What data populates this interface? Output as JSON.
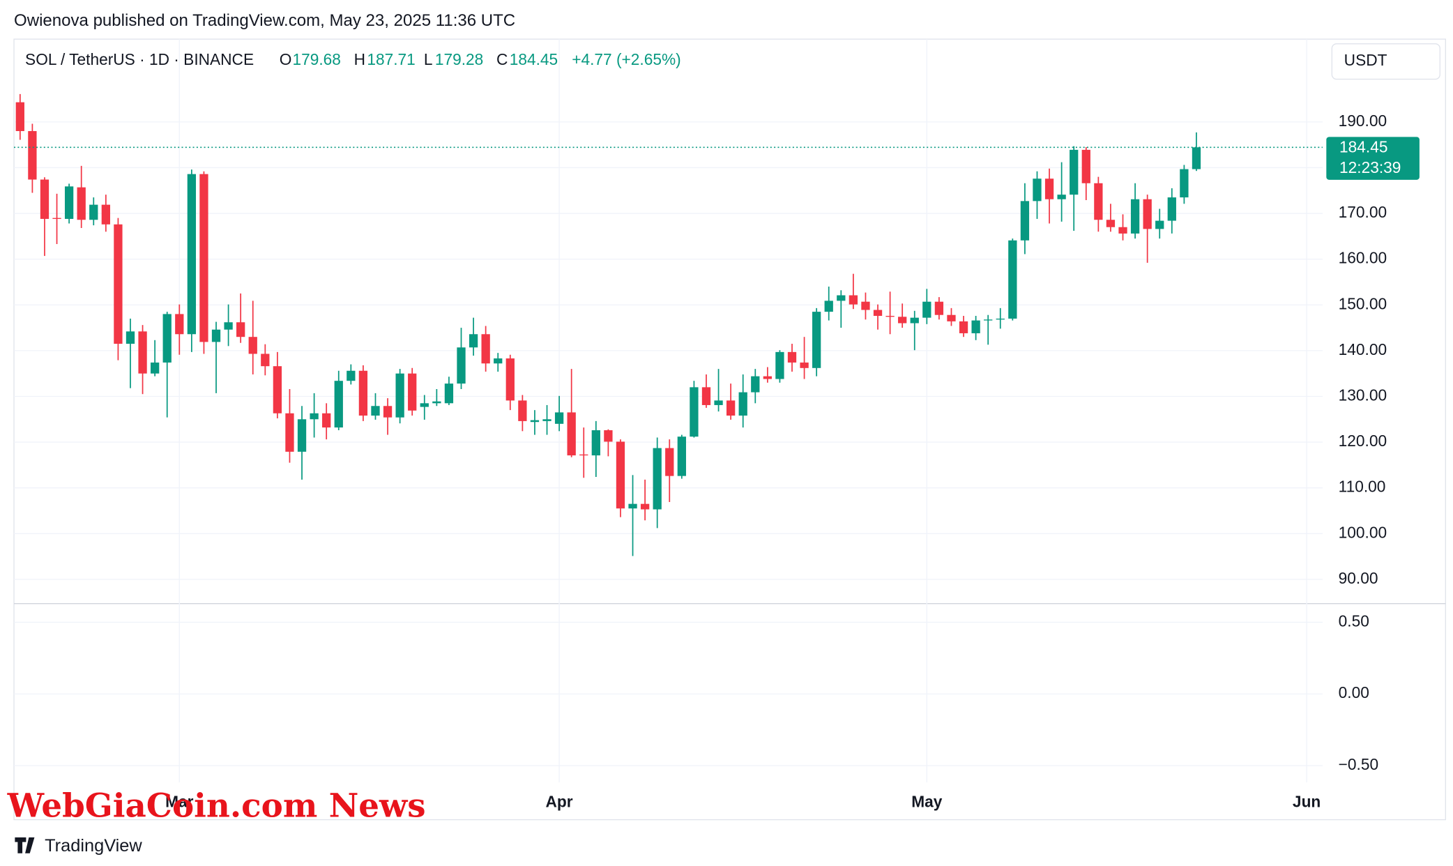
{
  "header": {
    "publisher": "Owienova published on TradingView.com, May 23, 2025 11:36 UTC",
    "symbol": "SOL / TetherUS · 1D · BINANCE",
    "open_label": "O",
    "open": 179.68,
    "high_label": "H",
    "high": 187.71,
    "low_label": "L",
    "low": 179.28,
    "close_label": "C",
    "close": 184.45,
    "change": "+4.77 (+2.65%)",
    "currency": "USDT"
  },
  "chart_data": {
    "type": "candlestick",
    "up_color": "#089981",
    "down_color": "#f23645",
    "grid": true,
    "last_price": 184.45,
    "countdown": "12:23:39",
    "xlim": [
      -0.5,
      106.3
    ],
    "xticks": [
      {
        "value": 13,
        "label": "Mar"
      },
      {
        "value": 44,
        "label": "Apr"
      },
      {
        "value": 74,
        "label": "May"
      },
      {
        "value": 105,
        "label": "Jun"
      }
    ],
    "ylim": [
      84.7,
      208.1
    ],
    "yticks": [
      {
        "value": 90,
        "label": "90.00"
      },
      {
        "value": 100,
        "label": "100.00"
      },
      {
        "value": 110,
        "label": "110.00"
      },
      {
        "value": 120,
        "label": "120.00"
      },
      {
        "value": 130,
        "label": "130.00"
      },
      {
        "value": 140,
        "label": "140.00"
      },
      {
        "value": 150,
        "label": "150.00"
      },
      {
        "value": 160,
        "label": "160.00"
      },
      {
        "value": 170,
        "label": "170.00"
      },
      {
        "value": 180,
        "label": "180.00"
      },
      {
        "value": 190,
        "label": "190.00"
      }
    ],
    "y2lim": [
      -0.617,
      0.63
    ],
    "y2ticks": [
      {
        "value": 0.5,
        "label": "0.50"
      },
      {
        "value": 0,
        "label": "0.00"
      },
      {
        "value": -0.5,
        "label": "−0.50"
      }
    ],
    "open": [
      194.3,
      188.0,
      177.4,
      169.0,
      168.8,
      175.7,
      168.6,
      171.9,
      167.6,
      141.5,
      144.2,
      135.0,
      137.4,
      148.0,
      143.6,
      178.6,
      141.9,
      144.6,
      146.2,
      143.0,
      139.3,
      136.6,
      126.3,
      117.9,
      125.0,
      126.3,
      123.2,
      133.4,
      135.6,
      125.8,
      127.9,
      125.4,
      135.0,
      127.7,
      128.5,
      128.5,
      132.8,
      140.7,
      143.6,
      137.2,
      138.3,
      129.1,
      124.4,
      124.6,
      124.0,
      126.5,
      117.3,
      117.1,
      122.6,
      120.1,
      105.5,
      106.5,
      105.3,
      118.7,
      112.6,
      121.2,
      132.0,
      128.1,
      129.1,
      125.8,
      130.9,
      134.4,
      133.8,
      139.7,
      137.4,
      136.2,
      148.5,
      150.9,
      152.1,
      150.7,
      148.9,
      147.6,
      147.4,
      146.0,
      147.2,
      150.7,
      147.8,
      146.4,
      143.8,
      146.6,
      146.8,
      147.0,
      164.1,
      172.7,
      177.6,
      173.1,
      174.1,
      183.9,
      176.6,
      168.6,
      167.0,
      165.6,
      173.1,
      166.6,
      168.4,
      173.5,
      179.68
    ],
    "high": [
      196.1,
      189.6,
      177.9,
      174.3,
      176.5,
      180.4,
      173.5,
      174.1,
      169.0,
      147.0,
      145.6,
      142.3,
      148.5,
      150.1,
      179.6,
      179.2,
      146.3,
      150.1,
      152.5,
      150.9,
      141.4,
      139.7,
      131.6,
      127.9,
      130.7,
      128.5,
      135.6,
      137.0,
      136.8,
      130.7,
      129.6,
      136.0,
      136.2,
      130.3,
      131.6,
      134.3,
      145.0,
      147.2,
      145.4,
      139.5,
      139.1,
      130.3,
      127.0,
      128.1,
      130.1,
      136.0,
      123.2,
      124.6,
      122.8,
      120.6,
      112.8,
      111.8,
      121.0,
      120.6,
      121.6,
      133.4,
      134.8,
      136.0,
      132.8,
      134.8,
      136.0,
      136.4,
      140.1,
      141.5,
      143.0,
      149.3,
      154.0,
      153.2,
      156.8,
      152.7,
      150.1,
      152.9,
      150.3,
      148.7,
      153.5,
      151.7,
      149.3,
      147.6,
      147.6,
      147.8,
      149.3,
      164.5,
      176.6,
      179.2,
      179.8,
      181.2,
      184.7,
      184.5,
      178.0,
      172.1,
      169.8,
      176.6,
      174.1,
      171.0,
      175.5,
      180.6,
      187.71
    ],
    "low": [
      186.1,
      174.5,
      160.7,
      163.3,
      167.8,
      166.8,
      167.4,
      166.0,
      137.9,
      131.8,
      130.5,
      134.4,
      125.4,
      139.1,
      139.7,
      139.3,
      130.7,
      141.0,
      141.7,
      134.8,
      134.6,
      125.2,
      115.5,
      111.8,
      121.0,
      120.6,
      122.6,
      132.6,
      124.6,
      124.9,
      121.6,
      124.1,
      125.8,
      124.9,
      127.9,
      128.1,
      131.6,
      138.9,
      135.4,
      135.4,
      127.0,
      122.4,
      121.6,
      121.6,
      122.4,
      116.7,
      112.2,
      112.4,
      116.9,
      103.6,
      95.1,
      102.9,
      101.2,
      106.9,
      112.0,
      121.0,
      127.5,
      126.7,
      124.9,
      123.2,
      128.5,
      133.0,
      133.0,
      135.4,
      133.8,
      134.4,
      146.6,
      145.0,
      149.1,
      146.8,
      144.6,
      143.6,
      145.0,
      140.1,
      145.8,
      146.8,
      145.4,
      143.0,
      142.3,
      141.3,
      144.8,
      146.6,
      161.1,
      168.8,
      167.8,
      168.2,
      166.2,
      172.9,
      166.0,
      166.0,
      164.1,
      164.5,
      159.2,
      164.5,
      165.6,
      172.1,
      179.28
    ],
    "close": [
      188.0,
      177.4,
      168.8,
      168.8,
      175.9,
      168.6,
      171.9,
      167.6,
      141.5,
      144.2,
      135.0,
      137.4,
      148.0,
      143.6,
      178.6,
      141.9,
      144.6,
      146.2,
      143.0,
      139.3,
      136.6,
      126.3,
      117.9,
      125.0,
      126.3,
      123.2,
      133.4,
      135.6,
      125.8,
      127.9,
      125.4,
      135.0,
      126.9,
      128.5,
      128.9,
      132.8,
      140.7,
      143.6,
      137.2,
      138.3,
      129.1,
      124.6,
      124.8,
      125.0,
      126.5,
      117.1,
      117.1,
      122.6,
      120.1,
      105.5,
      106.5,
      105.3,
      118.7,
      112.6,
      121.2,
      132.0,
      128.1,
      129.1,
      125.8,
      130.9,
      134.4,
      133.8,
      139.7,
      137.4,
      136.2,
      148.5,
      150.9,
      152.1,
      150.1,
      148.9,
      147.6,
      147.4,
      146.0,
      147.2,
      150.7,
      147.8,
      146.4,
      143.8,
      146.6,
      146.8,
      147.0,
      164.1,
      172.7,
      177.6,
      173.1,
      174.1,
      183.9,
      176.6,
      168.6,
      167.0,
      165.6,
      173.1,
      166.6,
      168.4,
      173.5,
      179.68,
      184.45
    ]
  },
  "watermark": "WebGiaCoin.com News",
  "brand": "TradingView"
}
